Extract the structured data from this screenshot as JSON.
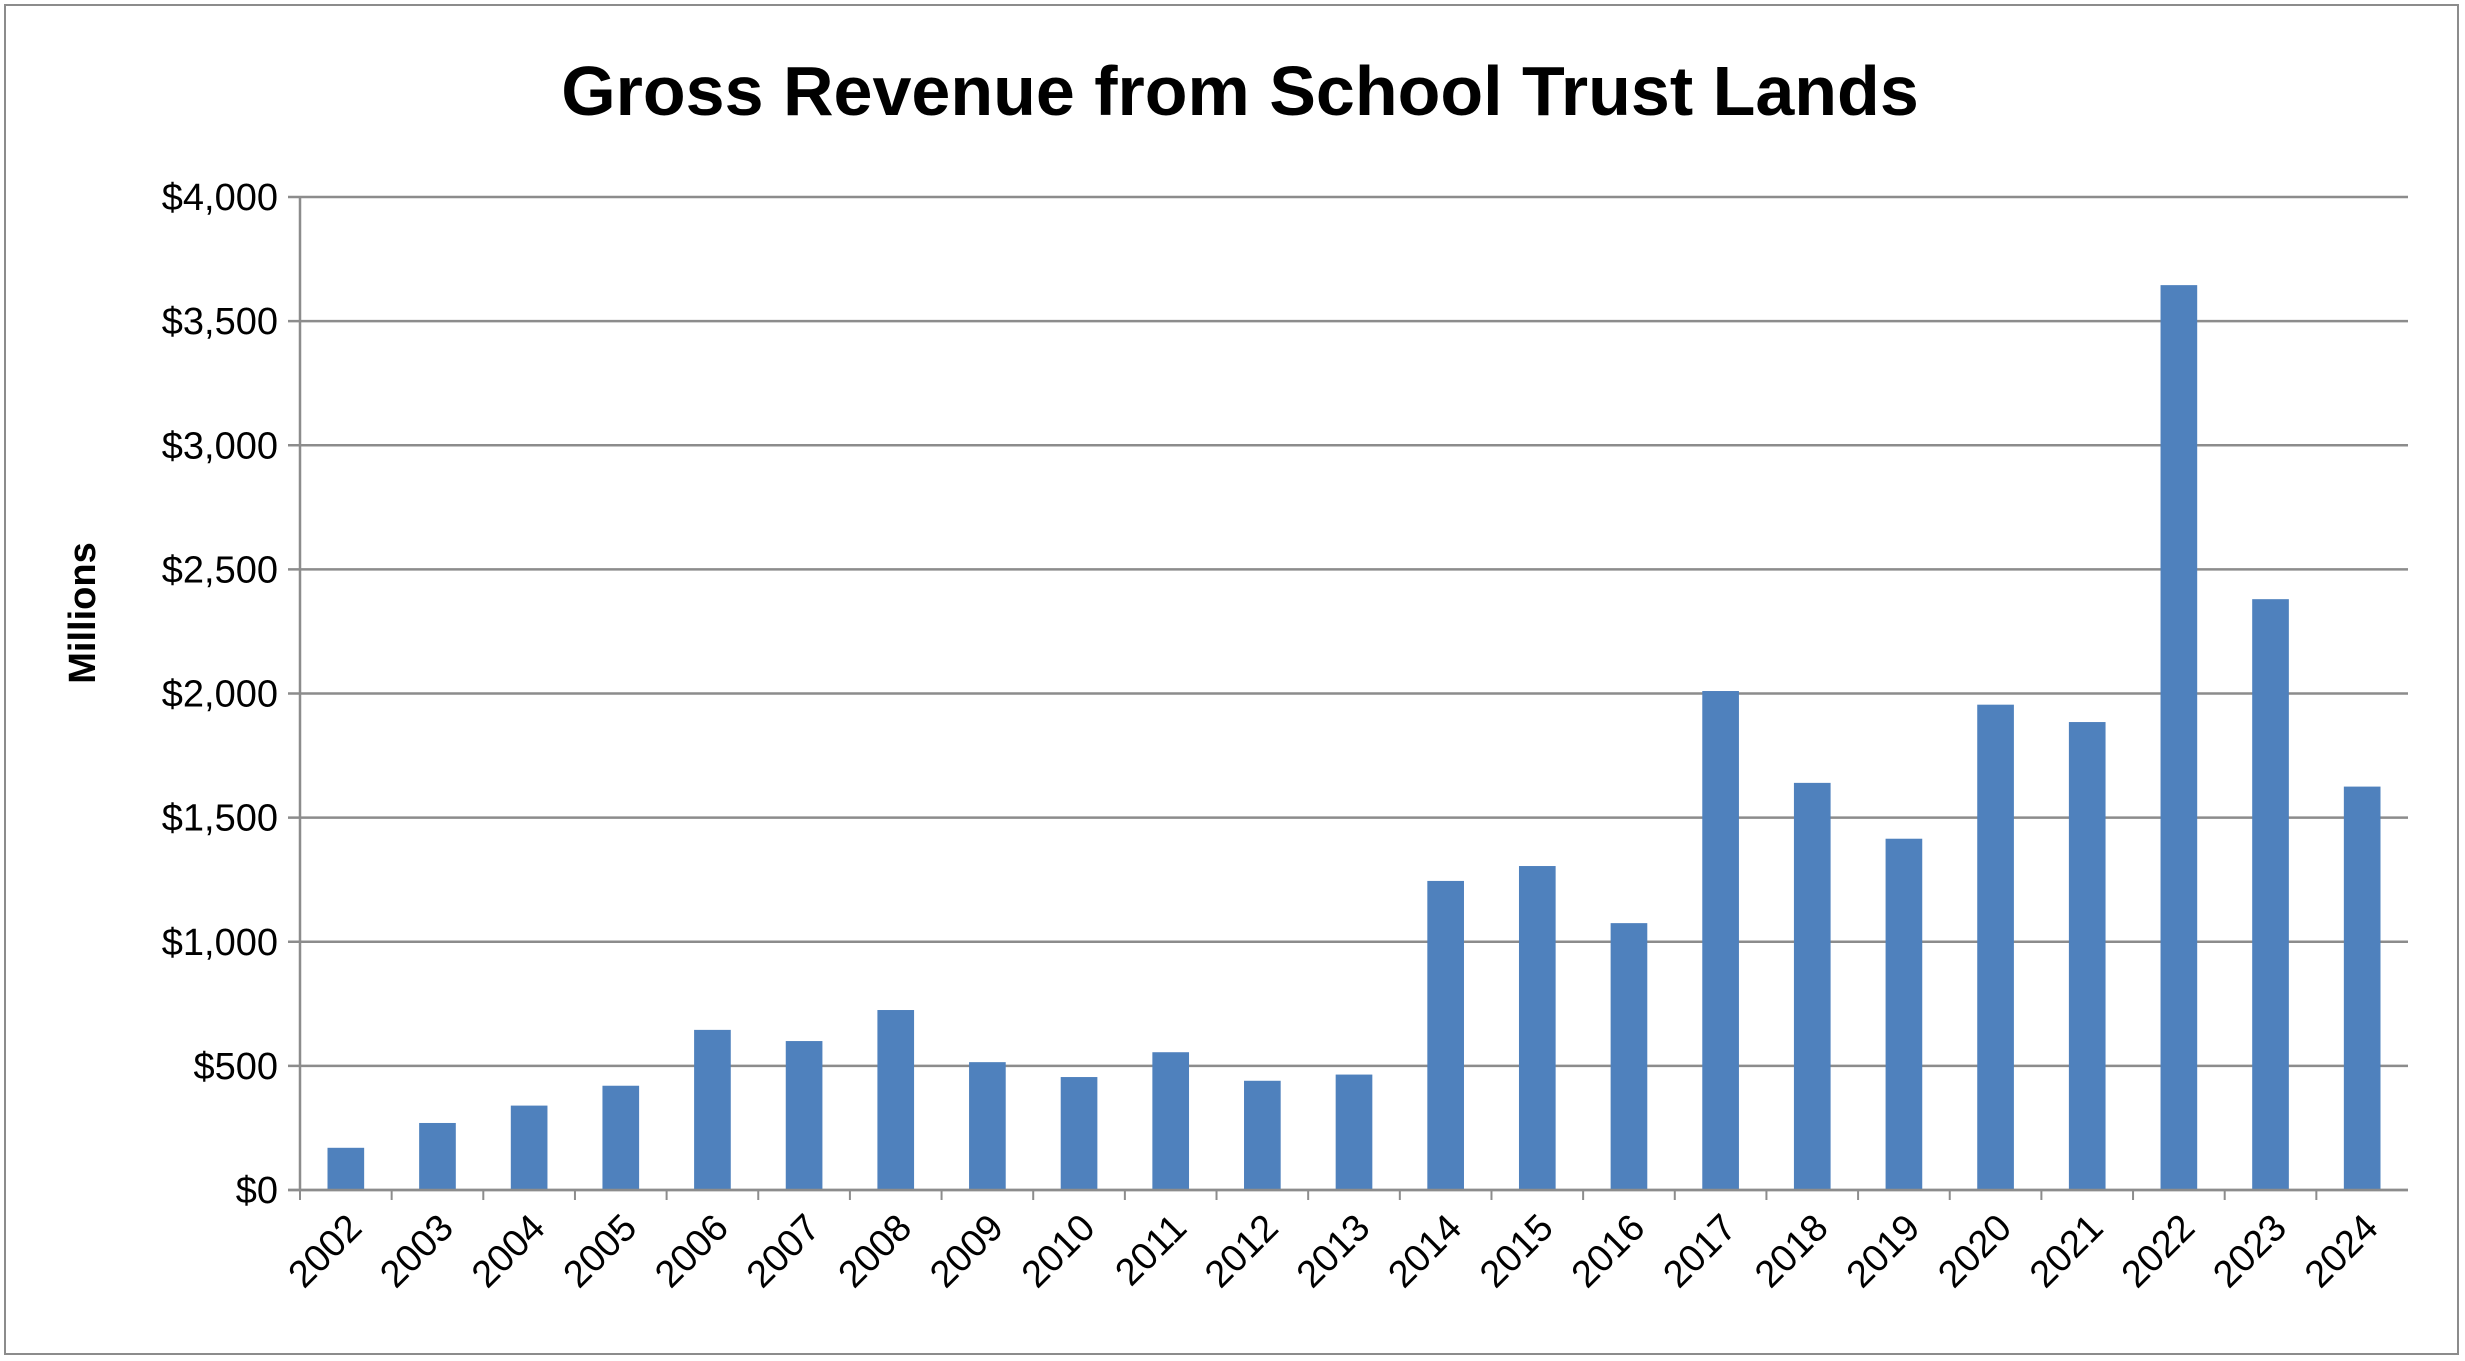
{
  "chart_data": {
    "type": "bar",
    "title": "Gross Revenue from School Trust Lands",
    "xlabel": "",
    "ylabel": "Millions",
    "ylim": [
      0,
      4000
    ],
    "y_ticks": [
      0,
      500,
      1000,
      1500,
      2000,
      2500,
      3000,
      3500,
      4000
    ],
    "y_tick_labels": [
      "$0",
      "$500",
      "$1,000",
      "$1,500",
      "$2,000",
      "$2,500",
      "$3,000",
      "$3,500",
      "$4,000"
    ],
    "grid": true,
    "legend": "none",
    "bar_color": "#4f81bd",
    "categories": [
      "2002",
      "2003",
      "2004",
      "2005",
      "2006",
      "2007",
      "2008",
      "2009",
      "2010",
      "2011",
      "2012",
      "2013",
      "2014",
      "2015",
      "2016",
      "2017",
      "2018",
      "2019",
      "2020",
      "2021",
      "2022",
      "2023",
      "2024"
    ],
    "values": [
      170,
      270,
      340,
      420,
      645,
      600,
      725,
      515,
      455,
      555,
      440,
      465,
      1245,
      1305,
      1075,
      2010,
      1640,
      1415,
      1955,
      1885,
      3645,
      2380,
      1625
    ]
  }
}
